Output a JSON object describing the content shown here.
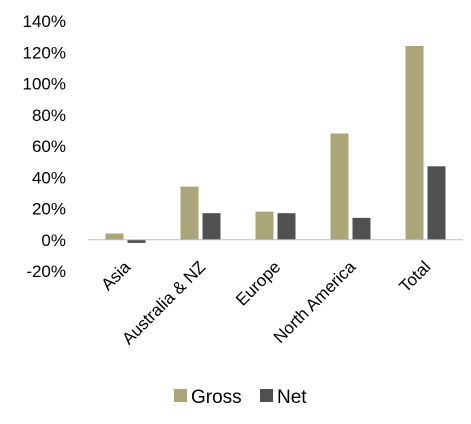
{
  "chart_data": {
    "type": "bar",
    "title": "",
    "xlabel": "",
    "ylabel": "",
    "categories": [
      "Asia",
      "Australia & NZ",
      "Europe",
      "North America",
      "Total"
    ],
    "series": [
      {
        "name": "Gross",
        "values": [
          4,
          34,
          18,
          68,
          124
        ],
        "color": "#ABA67A"
      },
      {
        "name": "Net",
        "values": [
          -2,
          17,
          17,
          14,
          47
        ],
        "color": "#505050"
      }
    ],
    "ylim": [
      -20,
      140
    ],
    "yticks": [
      -20,
      0,
      20,
      40,
      60,
      80,
      100,
      120,
      140
    ],
    "ytick_labels": [
      "-20%",
      "0%",
      "20%",
      "40%",
      "60%",
      "80%",
      "100%",
      "120%",
      "140%"
    ],
    "grid": false,
    "legend_position": "bottom"
  }
}
